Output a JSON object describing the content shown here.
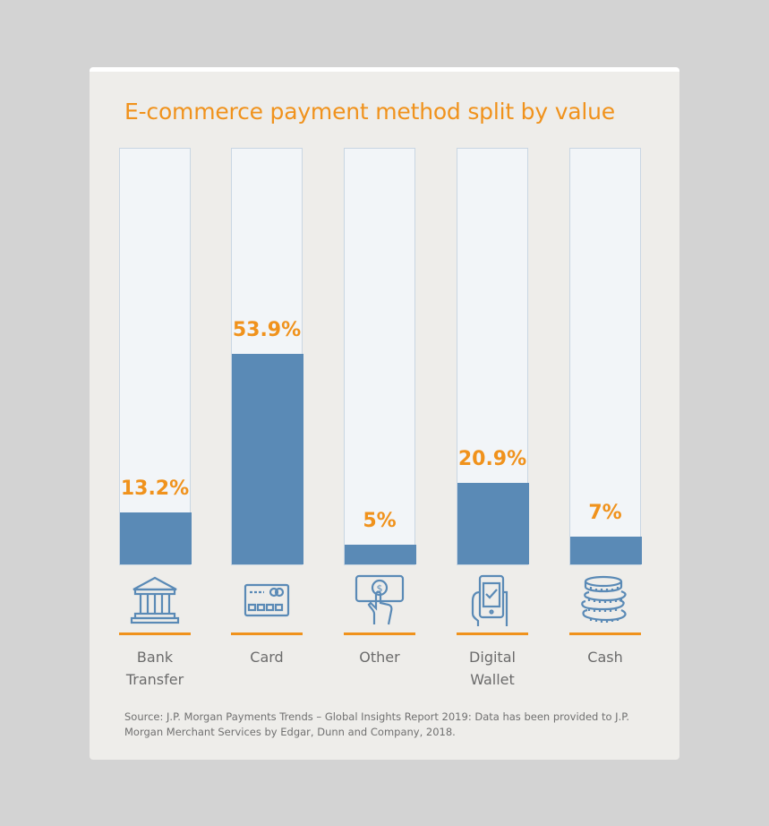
{
  "chart_data": {
    "type": "bar",
    "title": "E-commerce payment method split by value",
    "categories": [
      "Bank\nTransfer",
      "Card",
      "Other",
      "Digital\nWallet",
      "Cash"
    ],
    "values": [
      13.2,
      53.9,
      5,
      20.9,
      7
    ],
    "value_labels": [
      "13.2%",
      "53.9%",
      "5%",
      "20.9%",
      "7%"
    ],
    "icons": [
      "bank-icon",
      "credit-card-icon",
      "cash-payment-icon",
      "smartphone-wallet-icon",
      "coin-stack-icon"
    ],
    "ylim": [
      0,
      100
    ],
    "grid": false,
    "colors": {
      "bar": "#5a8ab6",
      "track": "#f2f5f8",
      "accent": "#f0921c"
    }
  },
  "source": "Source: J.P. Morgan Payments Trends – Global Insights Report 2019: Data has been provided to J.P. Morgan Merchant Services by Edgar, Dunn and Company, 2018."
}
